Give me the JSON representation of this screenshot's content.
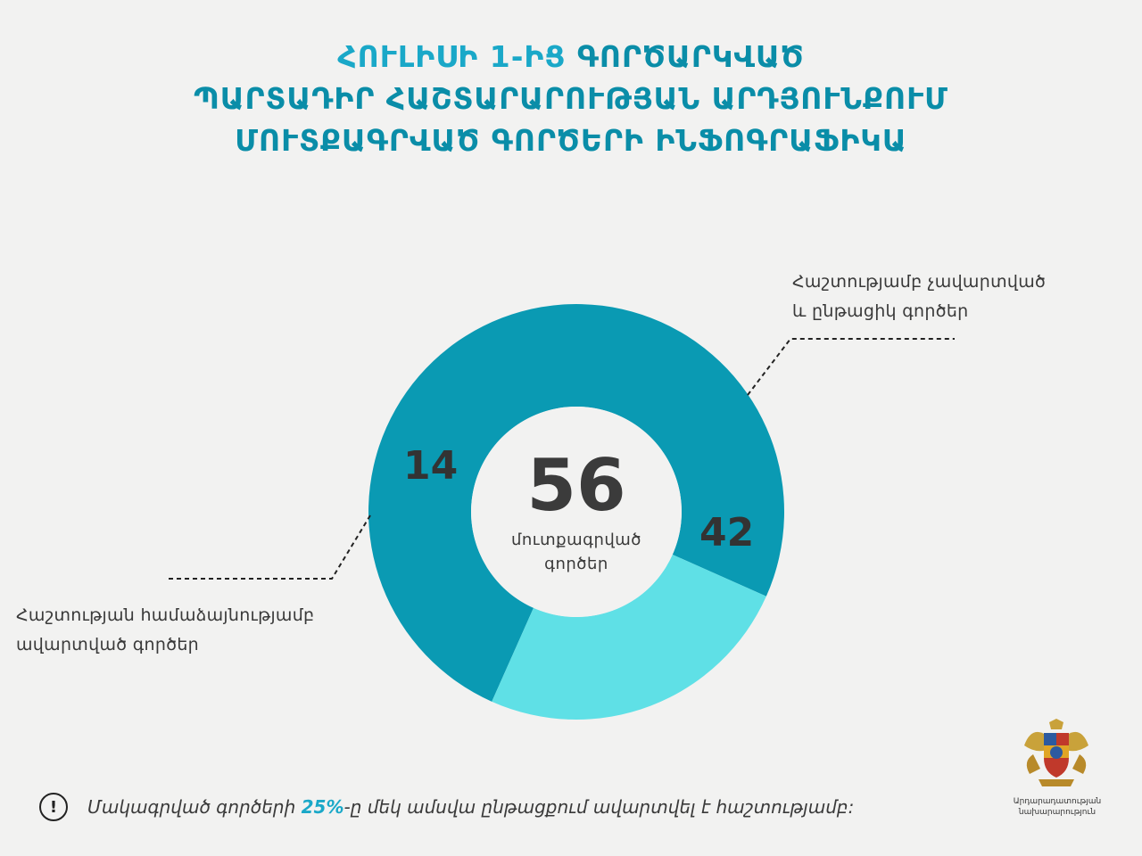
{
  "title": {
    "line1_part1": "ՀՈՒԼԻՍԻ 1-ԻՑ",
    "line1_part2": "ԳՈՐԾԱՐԿՎԱԾ",
    "line2": "ՊԱՐՏԱԴԻՐ ՀԱՇՏԱՐԱՐՈՒԹՅԱՆ ԱՐԴՅՈՒՆՔՈՒՄ",
    "line3": "ՄՈՒՏՔԱԳՐՎԱԾ ԳՈՐԾԵՐԻ ԻՆՖՈԳՐԱՖԻԿԱ"
  },
  "chart_data": {
    "type": "pie",
    "total": 56,
    "center_label": [
      "մուտքագրված",
      "գործեր"
    ],
    "slices": [
      {
        "label": "Հաշտությամբ չավարտված և ընթացիկ գործեր",
        "value": 42,
        "color": "#0a9ab3"
      },
      {
        "label": "Հաշտության համաձայնությամբ ավարտված գործեր",
        "value": 14,
        "color": "#5fe0e6"
      }
    ]
  },
  "callouts": {
    "right_line1": "Հաշտությամբ չավարտված",
    "right_line2": "և ընթացիկ գործեր",
    "left_line1": "Հաշտության համաձայնությամբ",
    "left_line2": "ավարտված գործեր"
  },
  "note": {
    "icon": "exclamation-icon",
    "icon_glyph": "!",
    "prefix": "Մակագրված գործերի",
    "percent": "25%",
    "suffix": "-ը մեկ ամսվա ընթացքում ավարտվել է հաշտությամբ:"
  },
  "footer": {
    "emblem": "coat-of-arms-emblem",
    "ministry_line1": "Արդարադատության",
    "ministry_line2": "նախարարություն"
  },
  "colors": {
    "accent": "#1aa8c8",
    "title": "#0a8da8",
    "dark_slice": "#0a9ab3",
    "light_slice": "#5fe0e6",
    "background": "#f2f2f1"
  }
}
